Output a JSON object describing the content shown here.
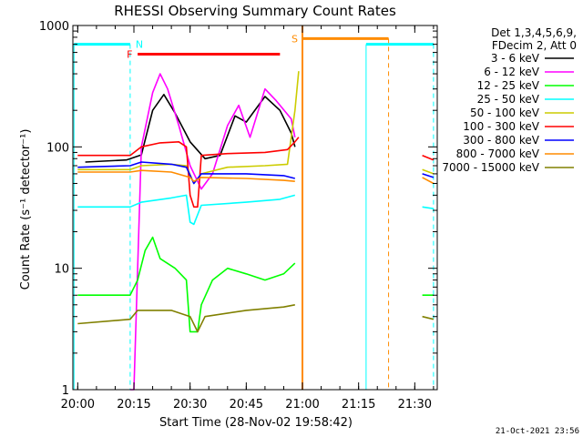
{
  "chart_data": {
    "type": "line",
    "title": "RHESSI Observing Summary Count Rates",
    "xlabel": "Start Time (28-Nov-02 19:58:42)",
    "ylabel": "Count Rate (s⁻¹ detector⁻¹)",
    "x_range": [
      "19:58:42",
      "21:36:00"
    ],
    "y_range": [
      1,
      1000
    ],
    "y_scale": "log",
    "x_ticks": [
      "20:00",
      "20:15",
      "20:30",
      "20:45",
      "21:00",
      "21:15",
      "21:30"
    ],
    "y_ticks": [
      "1",
      "10",
      "100",
      "1000"
    ],
    "legend_header": [
      "Det 1,3,4,5,6,9,",
      "FDecim 2, Att 0"
    ],
    "legend_position": "right",
    "series": [
      {
        "name": "3 - 6 keV",
        "color": "#000000",
        "points": [
          [
            "20:02",
            75
          ],
          [
            "20:13",
            78
          ],
          [
            "20:17",
            86
          ],
          [
            "20:20",
            200
          ],
          [
            "20:23",
            270
          ],
          [
            "20:26",
            190
          ],
          [
            "20:30",
            110
          ],
          [
            "20:34",
            80
          ],
          [
            "20:38",
            85
          ],
          [
            "20:42",
            180
          ],
          [
            "20:45",
            160
          ],
          [
            "20:50",
            260
          ],
          [
            "20:54",
            200
          ],
          [
            "20:57",
            130
          ],
          [
            "20:58",
            100
          ]
        ]
      },
      {
        "name": "6 - 12 keV",
        "color": "#ff00ff",
        "points": [
          [
            "20:14",
            1
          ],
          [
            "20:15",
            1
          ],
          [
            "20:17",
            100
          ],
          [
            "20:20",
            280
          ],
          [
            "20:22",
            400
          ],
          [
            "20:24",
            300
          ],
          [
            "20:27",
            150
          ],
          [
            "20:30",
            70
          ],
          [
            "20:33",
            45
          ],
          [
            "20:36",
            60
          ],
          [
            "20:40",
            150
          ],
          [
            "20:43",
            220
          ],
          [
            "20:46",
            120
          ],
          [
            "20:50",
            300
          ],
          [
            "20:53",
            240
          ],
          [
            "20:57",
            170
          ],
          [
            "20:58",
            120
          ]
        ]
      },
      {
        "name": "12 - 25 keV",
        "color": "#00ff00",
        "points": [
          [
            "20:00",
            6
          ],
          [
            "20:14",
            6
          ],
          [
            "20:16",
            8
          ],
          [
            "20:18",
            14
          ],
          [
            "20:20",
            18
          ],
          [
            "20:22",
            12
          ],
          [
            "20:26",
            10
          ],
          [
            "20:29",
            8
          ],
          [
            "20:30",
            3
          ],
          [
            "20:32",
            3
          ],
          [
            "20:33",
            5
          ],
          [
            "20:36",
            8
          ],
          [
            "20:40",
            10
          ],
          [
            "20:45",
            9
          ],
          [
            "20:50",
            8
          ],
          [
            "20:55",
            9
          ],
          [
            "20:58",
            11
          ],
          [
            "21:00",
            null
          ],
          [
            "21:32",
            6
          ],
          [
            "21:35",
            6
          ]
        ]
      },
      {
        "name": "25 - 50 keV",
        "color": "#00ffff",
        "points": [
          [
            "20:00",
            32
          ],
          [
            "20:14",
            32
          ],
          [
            "20:17",
            35
          ],
          [
            "20:25",
            38
          ],
          [
            "20:29",
            40
          ],
          [
            "20:30",
            24
          ],
          [
            "20:31",
            23
          ],
          [
            "20:33",
            33
          ],
          [
            "20:45",
            35
          ],
          [
            "20:54",
            37
          ],
          [
            "20:58",
            40
          ],
          [
            "21:00",
            null
          ],
          [
            "21:32",
            32
          ],
          [
            "21:35",
            31
          ]
        ]
      },
      {
        "name": "50 - 100 keV",
        "color": "#cccc00",
        "points": [
          [
            "20:00",
            65
          ],
          [
            "20:14",
            65
          ],
          [
            "20:17",
            70
          ],
          [
            "20:25",
            72
          ],
          [
            "20:29",
            70
          ],
          [
            "20:31",
            50
          ],
          [
            "20:33",
            60
          ],
          [
            "20:40",
            68
          ],
          [
            "20:50",
            70
          ],
          [
            "20:56",
            72
          ],
          [
            "20:58",
            200
          ],
          [
            "20:59",
            420
          ],
          [
            "21:00",
            null
          ],
          [
            "21:32",
            65
          ],
          [
            "21:35",
            60
          ]
        ]
      },
      {
        "name": "100 - 300 keV",
        "color": "#ff0000",
        "points": [
          [
            "20:00",
            85
          ],
          [
            "20:14",
            85
          ],
          [
            "20:17",
            100
          ],
          [
            "20:22",
            108
          ],
          [
            "20:27",
            110
          ],
          [
            "20:29",
            100
          ],
          [
            "20:30",
            40
          ],
          [
            "20:31",
            32
          ],
          [
            "20:32",
            32
          ],
          [
            "20:33",
            85
          ],
          [
            "20:40",
            88
          ],
          [
            "20:50",
            90
          ],
          [
            "20:56",
            95
          ],
          [
            "20:58",
            110
          ],
          [
            "20:59",
            120
          ],
          [
            "21:00",
            null
          ],
          [
            "21:32",
            85
          ],
          [
            "21:35",
            78
          ]
        ]
      },
      {
        "name": "300 - 800 keV",
        "color": "#0000ff",
        "points": [
          [
            "20:00",
            68
          ],
          [
            "20:14",
            70
          ],
          [
            "20:17",
            75
          ],
          [
            "20:25",
            72
          ],
          [
            "20:29",
            68
          ],
          [
            "20:31",
            50
          ],
          [
            "20:33",
            60
          ],
          [
            "20:45",
            60
          ],
          [
            "20:55",
            58
          ],
          [
            "20:58",
            55
          ],
          [
            "21:00",
            null
          ],
          [
            "21:32",
            60
          ],
          [
            "21:35",
            56
          ]
        ]
      },
      {
        "name": "800 - 7000 keV",
        "color": "#ff8c00",
        "points": [
          [
            "20:00",
            62
          ],
          [
            "20:14",
            62
          ],
          [
            "20:17",
            64
          ],
          [
            "20:25",
            62
          ],
          [
            "20:30",
            56
          ],
          [
            "20:31",
            52
          ],
          [
            "20:33",
            56
          ],
          [
            "20:45",
            55
          ],
          [
            "20:55",
            53
          ],
          [
            "20:58",
            52
          ],
          [
            "21:00",
            null
          ],
          [
            "21:32",
            56
          ],
          [
            "21:35",
            50
          ]
        ]
      },
      {
        "name": "7000 - 15000 keV",
        "color": "#808000",
        "points": [
          [
            "20:00",
            3.5
          ],
          [
            "20:14",
            3.8
          ],
          [
            "20:16",
            4.5
          ],
          [
            "20:25",
            4.5
          ],
          [
            "20:30",
            4
          ],
          [
            "20:32",
            3
          ],
          [
            "20:34",
            4
          ],
          [
            "20:45",
            4.5
          ],
          [
            "20:55",
            4.8
          ],
          [
            "20:58",
            5
          ],
          [
            "21:00",
            null
          ],
          [
            "21:32",
            4
          ],
          [
            "21:35",
            3.8
          ]
        ]
      }
    ],
    "annotations": [
      {
        "label": "N",
        "type": "night",
        "color": "#00ffff",
        "segments": [
          [
            "19:59",
            "20:14"
          ],
          [
            "21:17",
            "21:35"
          ]
        ],
        "level": 700
      },
      {
        "label": "F",
        "type": "flare",
        "color": "#ff0000",
        "segments": [
          [
            "20:16",
            "20:54"
          ]
        ],
        "level": 580
      },
      {
        "label": "S",
        "type": "saa",
        "color": "#ff8c00",
        "segments": [
          [
            "21:00",
            "21:23"
          ]
        ],
        "level": 780
      }
    ],
    "grid": false
  },
  "footer": {
    "timestamp": "21-Oct-2021 23:56"
  }
}
